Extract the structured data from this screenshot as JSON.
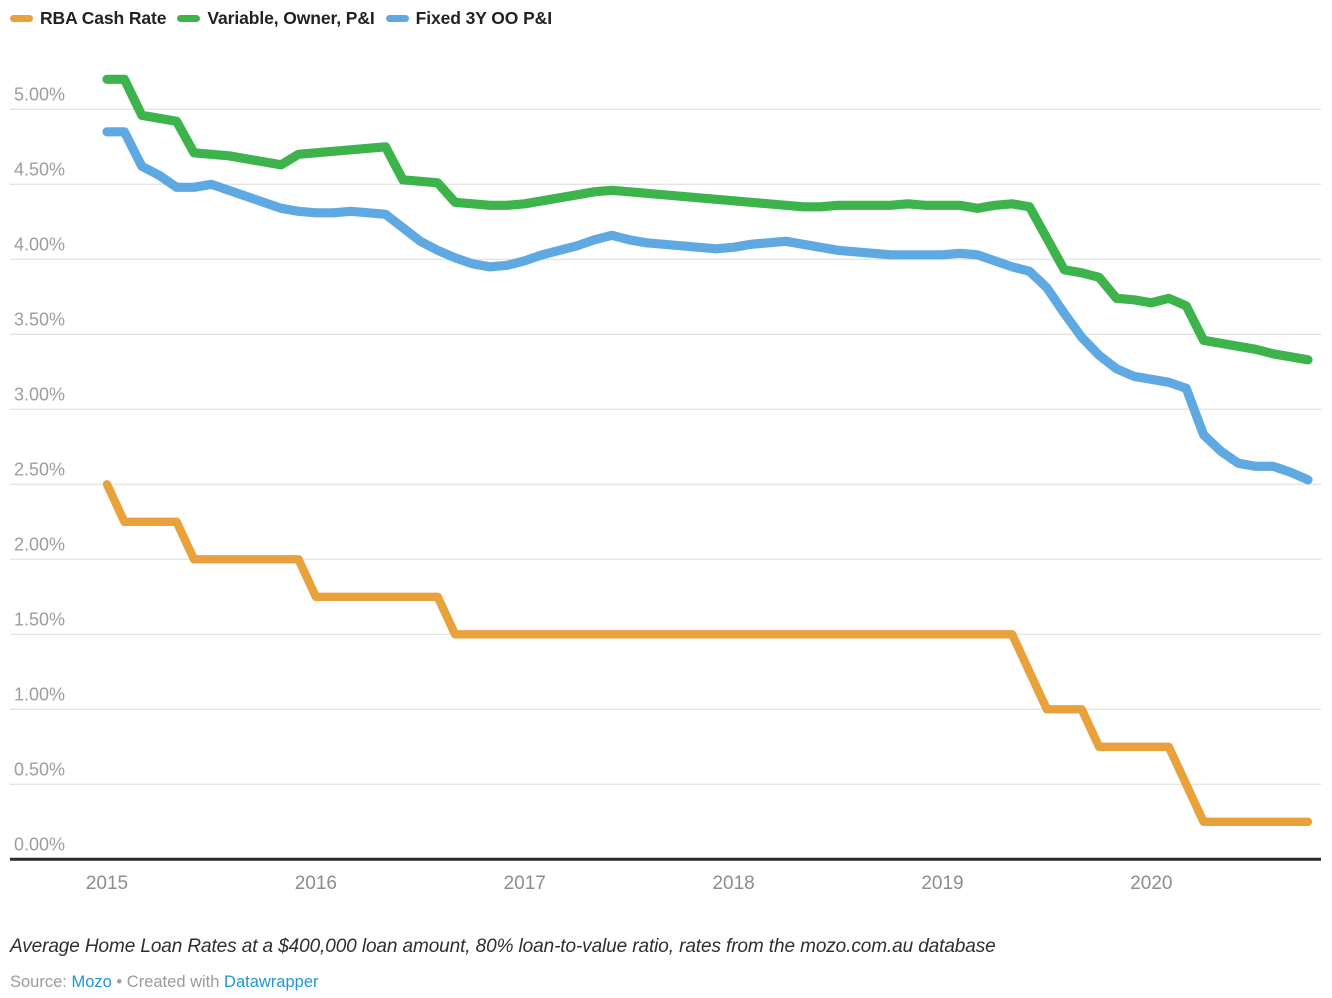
{
  "legend": {
    "items": [
      {
        "label": "RBA Cash Rate"
      },
      {
        "label": "Variable, Owner, P&I"
      },
      {
        "label": "Fixed 3Y OO P&I"
      }
    ]
  },
  "axes": {
    "y_ticks": [
      "5.00%",
      "4.50%",
      "4.00%",
      "3.50%",
      "3.00%",
      "2.50%",
      "2.00%",
      "1.50%",
      "1.00%",
      "0.50%",
      "0.00%"
    ],
    "x_ticks": [
      "2015",
      "2016",
      "2017",
      "2018",
      "2019",
      "2020"
    ]
  },
  "chart_data": {
    "type": "line",
    "title": "",
    "xlabel": "",
    "ylabel": "",
    "ylim": [
      0,
      5.2
    ],
    "grid": "horizontal",
    "legend_position": "top-left",
    "x": [
      "2015-01",
      "2015-02",
      "2015-03",
      "2015-04",
      "2015-05",
      "2015-06",
      "2015-07",
      "2015-08",
      "2015-09",
      "2015-10",
      "2015-11",
      "2015-12",
      "2016-01",
      "2016-02",
      "2016-03",
      "2016-04",
      "2016-05",
      "2016-06",
      "2016-07",
      "2016-08",
      "2016-09",
      "2016-10",
      "2016-11",
      "2016-12",
      "2017-01",
      "2017-02",
      "2017-03",
      "2017-04",
      "2017-05",
      "2017-06",
      "2017-07",
      "2017-08",
      "2017-09",
      "2017-10",
      "2017-11",
      "2017-12",
      "2018-01",
      "2018-02",
      "2018-03",
      "2018-04",
      "2018-05",
      "2018-06",
      "2018-07",
      "2018-08",
      "2018-09",
      "2018-10",
      "2018-11",
      "2018-12",
      "2019-01",
      "2019-02",
      "2019-03",
      "2019-04",
      "2019-05",
      "2019-06",
      "2019-07",
      "2019-08",
      "2019-09",
      "2019-10",
      "2019-11",
      "2019-12",
      "2020-01",
      "2020-02",
      "2020-03",
      "2020-04",
      "2020-05",
      "2020-06",
      "2020-07",
      "2020-08",
      "2020-09",
      "2020-10"
    ],
    "series": [
      {
        "name": "RBA Cash Rate",
        "color": "#e9a23b",
        "values": [
          2.5,
          2.25,
          2.25,
          2.25,
          2.25,
          2.0,
          2.0,
          2.0,
          2.0,
          2.0,
          2.0,
          2.0,
          1.75,
          1.75,
          1.75,
          1.75,
          1.75,
          1.75,
          1.75,
          1.75,
          1.5,
          1.5,
          1.5,
          1.5,
          1.5,
          1.5,
          1.5,
          1.5,
          1.5,
          1.5,
          1.5,
          1.5,
          1.5,
          1.5,
          1.5,
          1.5,
          1.5,
          1.5,
          1.5,
          1.5,
          1.5,
          1.5,
          1.5,
          1.5,
          1.5,
          1.5,
          1.5,
          1.5,
          1.5,
          1.5,
          1.5,
          1.5,
          1.5,
          1.25,
          1.0,
          1.0,
          1.0,
          0.75,
          0.75,
          0.75,
          0.75,
          0.75,
          0.5,
          0.25,
          0.25,
          0.25,
          0.25,
          0.25,
          0.25,
          0.25
        ]
      },
      {
        "name": "Variable, Owner, P&I",
        "color": "#3cb44b",
        "values": [
          5.2,
          5.2,
          4.96,
          4.94,
          4.92,
          4.71,
          4.7,
          4.69,
          4.67,
          4.65,
          4.63,
          4.7,
          4.71,
          4.72,
          4.73,
          4.74,
          4.75,
          4.53,
          4.52,
          4.51,
          4.38,
          4.37,
          4.36,
          4.36,
          4.37,
          4.39,
          4.41,
          4.43,
          4.45,
          4.46,
          4.45,
          4.44,
          4.43,
          4.42,
          4.41,
          4.4,
          4.39,
          4.38,
          4.37,
          4.36,
          4.35,
          4.35,
          4.36,
          4.36,
          4.36,
          4.36,
          4.37,
          4.36,
          4.36,
          4.36,
          4.34,
          4.36,
          4.37,
          4.35,
          4.14,
          3.93,
          3.91,
          3.88,
          3.74,
          3.73,
          3.71,
          3.74,
          3.69,
          3.46,
          3.44,
          3.42,
          3.4,
          3.37,
          3.35,
          3.33
        ]
      },
      {
        "name": "Fixed 3Y OO P&I",
        "color": "#5fa9e2",
        "values": [
          4.85,
          4.85,
          4.62,
          4.56,
          4.48,
          4.48,
          4.5,
          4.46,
          4.42,
          4.38,
          4.34,
          4.32,
          4.31,
          4.31,
          4.32,
          4.31,
          4.3,
          4.21,
          4.12,
          4.06,
          4.01,
          3.97,
          3.95,
          3.96,
          3.99,
          4.03,
          4.06,
          4.09,
          4.13,
          4.16,
          4.13,
          4.11,
          4.1,
          4.09,
          4.08,
          4.07,
          4.08,
          4.1,
          4.11,
          4.12,
          4.1,
          4.08,
          4.06,
          4.05,
          4.04,
          4.03,
          4.03,
          4.03,
          4.03,
          4.04,
          4.03,
          3.99,
          3.95,
          3.92,
          3.81,
          3.64,
          3.48,
          3.36,
          3.27,
          3.22,
          3.2,
          3.18,
          3.14,
          2.83,
          2.72,
          2.64,
          2.62,
          2.62,
          2.58,
          2.53
        ]
      }
    ]
  },
  "footer": {
    "note": "Average Home Loan Rates at a $400,000 loan amount, 80% loan-to-value ratio, rates from the mozo.com.au database",
    "source_label": "Source:",
    "source_link": "Mozo",
    "bullet": "•",
    "created_label": "Created with",
    "created_link": "Datawrapper"
  }
}
